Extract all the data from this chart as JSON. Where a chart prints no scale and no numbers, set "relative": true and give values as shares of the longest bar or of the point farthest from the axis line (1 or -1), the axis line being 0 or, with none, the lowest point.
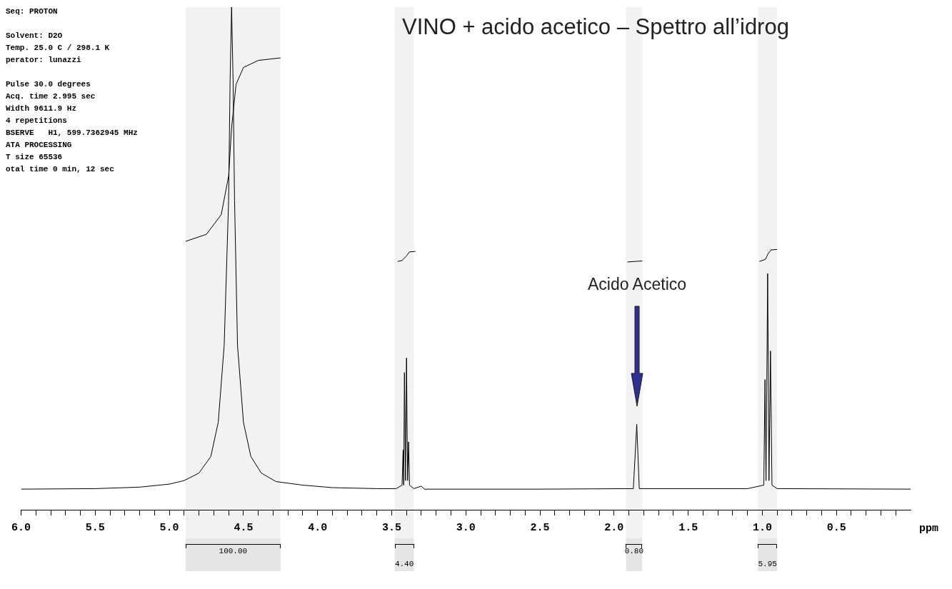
{
  "chart_data": {
    "type": "line",
    "relative": true,
    "title": "VINO + acido acetico – Spettro all’idrog",
    "xlabel": "ppm",
    "marker": "none",
    "line_style": "solid",
    "xlim": [
      6.0,
      0.0
    ],
    "xticks": [
      {
        "value": 6,
        "label": "6.0"
      },
      {
        "value": 5.9,
        "label": null
      },
      {
        "value": 5.8,
        "label": null
      },
      {
        "value": 5.7,
        "label": null
      },
      {
        "value": 5.6,
        "label": null
      },
      {
        "value": 5.5,
        "label": "5.5"
      },
      {
        "value": 5.4,
        "label": null
      },
      {
        "value": 5.3,
        "label": null
      },
      {
        "value": 5.2,
        "label": null
      },
      {
        "value": 5.1,
        "label": null
      },
      {
        "value": 5,
        "label": "5.0"
      },
      {
        "value": 4.9,
        "label": null
      },
      {
        "value": 4.8,
        "label": null
      },
      {
        "value": 4.7,
        "label": null
      },
      {
        "value": 4.6,
        "label": null
      },
      {
        "value": 4.5,
        "label": "4.5"
      },
      {
        "value": 4.4,
        "label": null
      },
      {
        "value": 4.3,
        "label": null
      },
      {
        "value": 4.2,
        "label": null
      },
      {
        "value": 4.1,
        "label": null
      },
      {
        "value": 4,
        "label": "4.0"
      },
      {
        "value": 3.9,
        "label": null
      },
      {
        "value": 3.8,
        "label": null
      },
      {
        "value": 3.7,
        "label": null
      },
      {
        "value": 3.6,
        "label": null
      },
      {
        "value": 3.5,
        "label": "3.5"
      },
      {
        "value": 3.4,
        "label": null
      },
      {
        "value": 3.3,
        "label": null
      },
      {
        "value": 3.2,
        "label": null
      },
      {
        "value": 3.1,
        "label": null
      },
      {
        "value": 3,
        "label": "3.0"
      },
      {
        "value": 2.9,
        "label": null
      },
      {
        "value": 2.8,
        "label": null
      },
      {
        "value": 2.7,
        "label": null
      },
      {
        "value": 2.6,
        "label": null
      },
      {
        "value": 2.5,
        "label": "2.5"
      },
      {
        "value": 2.4,
        "label": null
      },
      {
        "value": 2.3,
        "label": null
      },
      {
        "value": 2.2,
        "label": null
      },
      {
        "value": 2.1,
        "label": null
      },
      {
        "value": 2,
        "label": "2.0"
      },
      {
        "value": 1.9,
        "label": null
      },
      {
        "value": 1.8,
        "label": null
      },
      {
        "value": 1.7,
        "label": null
      },
      {
        "value": 1.6,
        "label": null
      },
      {
        "value": 1.5,
        "label": "1.5"
      },
      {
        "value": 1.4,
        "label": null
      },
      {
        "value": 1.3,
        "label": null
      },
      {
        "value": 1.2,
        "label": null
      },
      {
        "value": 1.1,
        "label": null
      },
      {
        "value": 1,
        "label": "1.0"
      },
      {
        "value": 0.9,
        "label": null
      },
      {
        "value": 0.8,
        "label": null
      },
      {
        "value": 0.7,
        "label": null
      },
      {
        "value": 0.6,
        "label": null
      },
      {
        "value": 0.5,
        "label": "0.5"
      },
      {
        "value": 0.4,
        "label": null
      },
      {
        "value": 0.3,
        "label": null
      },
      {
        "value": 0.2,
        "label": null
      },
      {
        "value": 0.1,
        "label": null
      }
    ],
    "series": [
      {
        "color": "#000000",
        "x": [
          6.0,
          5.5,
          5.2,
          5.0,
          4.9,
          4.8,
          4.72,
          4.67,
          4.63,
          4.6,
          4.59,
          4.58,
          4.57,
          4.56,
          4.54,
          4.5,
          4.45,
          4.38,
          4.28,
          4.1,
          3.9,
          3.6,
          3.47,
          3.43,
          3.423,
          3.419,
          3.414,
          3.407,
          3.4,
          3.393,
          3.386,
          3.38,
          3.35,
          3.3,
          3.28,
          2.5,
          1.87,
          1.847,
          1.83,
          1.1,
          0.99,
          0.982,
          0.975,
          0.964,
          0.955,
          0.945,
          0.935,
          0.9,
          0.0
        ],
        "values": [
          0.041,
          0.042,
          0.045,
          0.051,
          0.058,
          0.073,
          0.106,
          0.174,
          0.327,
          0.616,
          0.856,
          1.0,
          0.856,
          0.616,
          0.327,
          0.174,
          0.106,
          0.073,
          0.056,
          0.049,
          0.044,
          0.042,
          0.042,
          0.049,
          0.119,
          0.049,
          0.273,
          0.058,
          0.302,
          0.058,
          0.135,
          0.049,
          0.042,
          0.047,
          0.041,
          0.041,
          0.042,
          0.17,
          0.042,
          0.042,
          0.049,
          0.259,
          0.058,
          0.47,
          0.058,
          0.316,
          0.049,
          0.042,
          0.041
        ]
      },
      {
        "color": "#000000",
        "x": [
          4.89,
          4.75,
          4.65,
          4.6,
          4.58,
          4.55,
          4.5,
          4.4,
          4.25
        ],
        "values": [
          0.534,
          0.548,
          0.587,
          0.664,
          0.76,
          0.846,
          0.88,
          0.894,
          0.899
        ]
      },
      {
        "color": "#000000",
        "x": [
          3.46,
          3.43,
          3.4,
          3.38,
          3.34
        ],
        "values": [
          0.494,
          0.496,
          0.505,
          0.513,
          0.514
        ]
      },
      {
        "color": "#000000",
        "x": [
          1.91,
          1.86,
          1.81
        ],
        "values": [
          0.493,
          0.494,
          0.495
        ]
      },
      {
        "color": "#000000",
        "x": [
          1.02,
          0.98,
          0.96,
          0.94,
          0.9
        ],
        "values": [
          0.494,
          0.498,
          0.51,
          0.517,
          0.518
        ]
      }
    ],
    "bands": [
      {
        "axis": "x",
        "from": 4.89,
        "to": 4.25,
        "label": "100.00"
      },
      {
        "axis": "x",
        "from": 3.48,
        "to": 3.35,
        "label": "4.40"
      },
      {
        "axis": "x",
        "from": 1.92,
        "to": 1.81,
        "label": "0.80"
      },
      {
        "axis": "x",
        "from": 1.03,
        "to": 0.9,
        "label": "5.95"
      }
    ],
    "annotations": [
      "Seq: PROTON",
      "Solvent: D2O",
      "Temp. 25.0 C / 298.1 K",
      "perator: lunazzi",
      "Pulse 30.0 degrees",
      "Acq. time 2.995 sec",
      "Width 9611.9 Hz",
      "4 repetitions",
      "BSERVE   H1, 599.7362945 MHz",
      "ATA PROCESSING",
      "T size 65536",
      "otal time 0 min, 12 sec",
      "Acido Acetico"
    ]
  }
}
